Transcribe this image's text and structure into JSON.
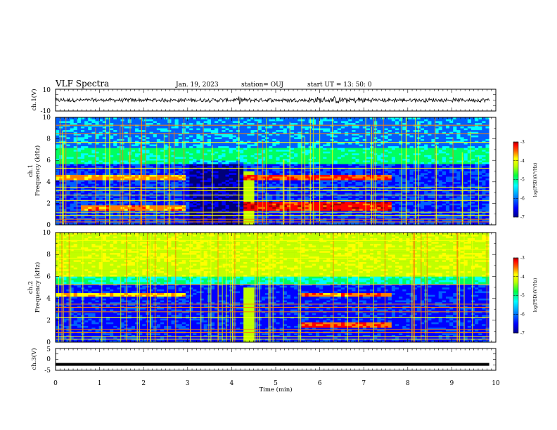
{
  "header": {
    "title": "VLF Spectra",
    "date": "Jan. 19, 2023",
    "station": "station= OUJ",
    "start": "start  UT  =   13: 50: 0"
  },
  "chart_data": [
    {
      "type": "line",
      "panel": "ch1-waveform",
      "ylabel": "ch.1(V)",
      "ylim": [
        -10,
        10
      ],
      "ytick_labels": [
        "10",
        "-10"
      ],
      "xlim": [
        0,
        9.85
      ],
      "description_values": {
        "baseline": 0,
        "amplitude_range": [
          -3,
          3
        ]
      }
    },
    {
      "type": "heatmap",
      "panel": "ch1-spectrogram",
      "ylabel": "ch.1\nFrequency (kHz)",
      "ylim": [
        0,
        10
      ],
      "yticks": [
        0,
        2,
        4,
        6,
        8,
        10
      ],
      "xlim": [
        0,
        9.85
      ],
      "colorbar": {
        "label": "log(PSD)(V²/Hz)",
        "range": [
          -7,
          -3
        ],
        "ticks": [
          "-3",
          "-4",
          "-5",
          "-6",
          "-7"
        ]
      },
      "features": [
        {
          "freq_khz": [
            5.6,
            7.1
          ],
          "level": -5.3
        },
        {
          "freq_khz": [
            4.2,
            4.6
          ],
          "time_min": [
            0,
            2.9
          ],
          "level": -4.1
        },
        {
          "freq_khz": [
            4.2,
            4.6
          ],
          "time_min": [
            4.2,
            7.6
          ],
          "level": -3.8
        },
        {
          "freq_khz": [
            1.3,
            1.8
          ],
          "time_min": [
            0.55,
            2.9
          ],
          "level": -4.0
        },
        {
          "freq_khz": [
            1.3,
            2.1
          ],
          "time_min": [
            4.2,
            7.6
          ],
          "level": -3.6
        }
      ]
    },
    {
      "type": "heatmap",
      "panel": "ch2-spectrogram",
      "ylabel": "ch.2\nFrequency (kHz)",
      "ylim": [
        0,
        10
      ],
      "yticks": [
        0,
        2,
        4,
        6,
        8,
        10
      ],
      "xlim": [
        0,
        9.85
      ],
      "colorbar": {
        "label": "log(PSD)(V²/Hz)",
        "range": [
          -7,
          -3
        ],
        "ticks": [
          "-3",
          "-4",
          "-5",
          "-6",
          "-7"
        ]
      },
      "features": [
        {
          "freq_khz": [
            6.0,
            10
          ],
          "level": -4.7
        },
        {
          "freq_khz": [
            4.1,
            4.5
          ],
          "time_min": [
            0,
            2.9
          ],
          "level": -4.2
        },
        {
          "freq_khz": [
            4.1,
            4.5
          ],
          "time_min": [
            5.5,
            7.6
          ],
          "level": -4.0
        },
        {
          "freq_khz": [
            1.3,
            1.8
          ],
          "time_min": [
            5.5,
            7.6
          ],
          "level": -3.8
        }
      ]
    },
    {
      "type": "line",
      "panel": "ch3-waveform",
      "ylabel": "ch.3(V)",
      "ylim": [
        -5,
        5
      ],
      "ytick_labels": [
        "5",
        "0",
        "-5"
      ],
      "xlim": [
        0,
        9.85
      ],
      "description_values": {
        "constant": -2.3
      }
    }
  ],
  "xaxis": {
    "label": "Time (min)",
    "ticks": [
      "0",
      "1",
      "2",
      "3",
      "4",
      "5",
      "6",
      "7",
      "8",
      "9",
      "10"
    ]
  },
  "colors": {
    "colormap": [
      "#00008f",
      "#0000ff",
      "#0060ff",
      "#00ffff",
      "#00ff60",
      "#c0ff00",
      "#ffff00",
      "#ff8000",
      "#ff0000",
      "#a00000"
    ]
  }
}
